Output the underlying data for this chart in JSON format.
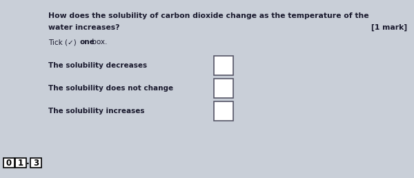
{
  "background_color": "#c9cfd8",
  "question_number_boxes": [
    "0",
    "1",
    "3"
  ],
  "question_text_line1": "How does the solubility of carbon dioxide change as the temperature of the",
  "question_text_line2": "water increases?",
  "mark_text": "[1 mark]",
  "tick_part1": "Tick (",
  "tick_check": "✓",
  "tick_part2": ") ",
  "tick_bold": "one",
  "tick_part3": " box.",
  "options": [
    "The solubility decreases",
    "The solubility does not change",
    "The solubility increases"
  ],
  "num_box_color": "white",
  "checkbox_color": "white",
  "text_color": "#1a1a2e",
  "font_size_main": 7.8,
  "font_size_num": 8.5,
  "font_size_tick": 7.5,
  "font_size_option": 7.5
}
